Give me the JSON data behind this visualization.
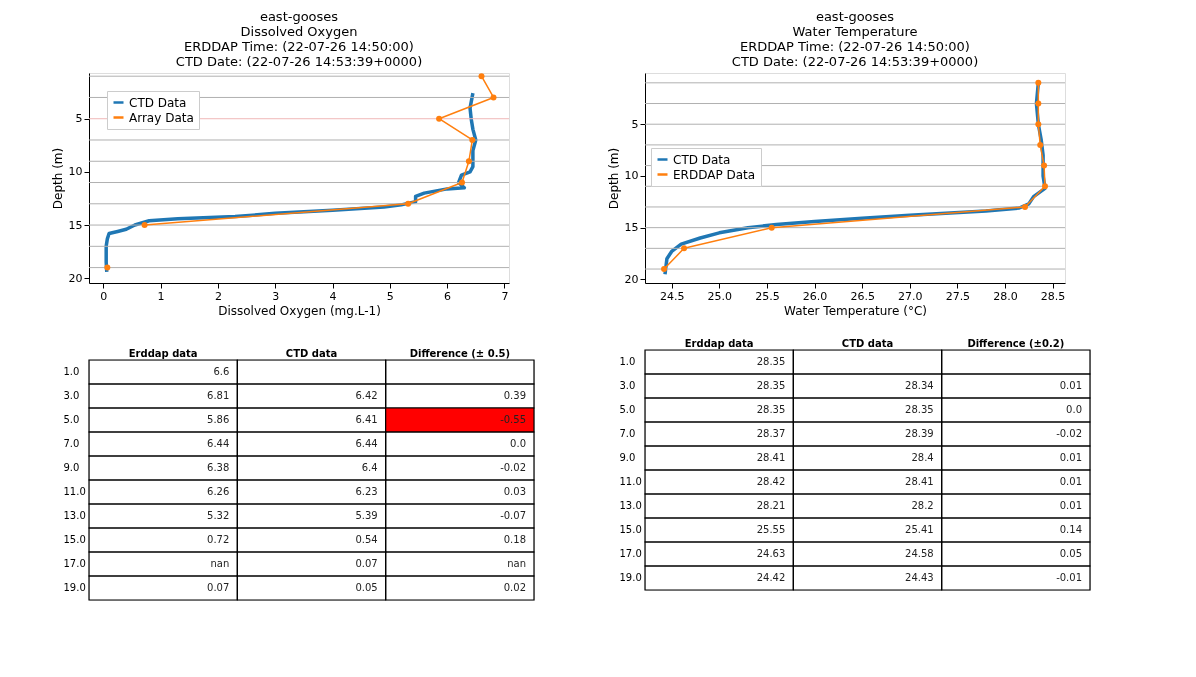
{
  "chart_data": [
    {
      "type": "line",
      "title": "east-gooses\nDissolved Oxygen\nERDDAP Time: (22-07-26 14:50:00)\nCTD Date: (22-07-26 14:53:39+0000)",
      "xlabel": "Dissolved Oxygen (mg.L-1)",
      "ylabel": "Depth (m)",
      "xlim": [
        -0.25,
        7.08
      ],
      "ylim": [
        20.45,
        0.7
      ],
      "xticks": [
        0,
        1,
        2,
        3,
        4,
        5,
        6,
        7
      ],
      "yticks": [
        5,
        10,
        15,
        20
      ],
      "grid": false,
      "legend": "top left",
      "line_style": "solid",
      "series": [
        {
          "name": "CTD Data",
          "color": "#1f77b4",
          "marker": "none",
          "x": [
            6.45,
            6.4,
            6.42,
            6.45,
            6.5,
            6.45,
            6.45,
            6.4,
            6.25,
            6.2,
            6.3,
            6.0,
            5.6,
            5.45,
            5.45,
            5.2,
            4.9,
            4.0,
            3.0,
            2.3,
            1.3,
            0.8,
            0.55,
            0.4,
            0.25,
            0.1,
            0.07,
            0.05,
            0.05,
            0.06
          ],
          "values": [
            2.6,
            4.0,
            5.0,
            6.0,
            7.0,
            8.0,
            9.5,
            10.0,
            10.3,
            11.0,
            11.5,
            11.6,
            12.0,
            12.3,
            12.8,
            13.1,
            13.3,
            13.6,
            13.9,
            14.2,
            14.4,
            14.6,
            15.0,
            15.4,
            15.6,
            15.8,
            16.3,
            17.0,
            18.5,
            19.4
          ]
        },
        {
          "name": "Array Data",
          "color": "#ff7f0e",
          "marker": "circle",
          "x": [
            6.6,
            6.81,
            5.86,
            6.44,
            6.38,
            6.26,
            5.32,
            0.72,
            null,
            0.07
          ],
          "values": [
            1,
            3,
            5,
            7,
            9,
            11,
            13,
            15,
            null,
            19
          ]
        }
      ],
      "ref_lines": [
        {
          "axis": "y",
          "value": 1,
          "color": "#b0b0b0"
        },
        {
          "axis": "y",
          "value": 3,
          "color": "#b0b0b0"
        },
        {
          "axis": "y",
          "value": 5,
          "color": "#f0b8b8"
        },
        {
          "axis": "y",
          "value": 7,
          "color": "#b0b0b0"
        },
        {
          "axis": "y",
          "value": 9,
          "color": "#b0b0b0"
        },
        {
          "axis": "y",
          "value": 11,
          "color": "#b0b0b0"
        },
        {
          "axis": "y",
          "value": 13,
          "color": "#b0b0b0"
        },
        {
          "axis": "y",
          "value": 15,
          "color": "#b0b0b0"
        },
        {
          "axis": "y",
          "value": 17,
          "color": "#b0b0b0"
        },
        {
          "axis": "y",
          "value": 19,
          "color": "#b0b0b0"
        }
      ]
    },
    {
      "type": "line",
      "title": "east-gooses\nWater Temperature\nERDDAP Time: (22-07-26 14:50:00)\nCTD Date: (22-07-26 14:53:39+0000)",
      "xlabel": "Water Temperature (°C)",
      "ylabel": "Depth (m)",
      "xlim": [
        24.22,
        28.63
      ],
      "ylim": [
        20.35,
        0.05
      ],
      "xticks": [
        24.5,
        {
          "value": 25,
          "label": "25.0"
        },
        25.5,
        {
          "value": 26,
          "label": "26.0"
        },
        26.5,
        {
          "value": 27,
          "label": "27.0"
        },
        27.5,
        {
          "value": 28,
          "label": "28.0"
        },
        28.5
      ],
      "yticks": [
        5,
        10,
        15,
        20
      ],
      "grid": false,
      "legend": "left",
      "line_style": "solid",
      "series": [
        {
          "name": "CTD Data",
          "color": "#1f77b4",
          "marker": "none",
          "x": [
            28.35,
            28.33,
            28.35,
            28.38,
            28.4,
            28.4,
            28.42,
            28.3,
            28.25,
            28.15,
            27.8,
            27.0,
            26.5,
            26.0,
            25.6,
            25.3,
            25.0,
            24.8,
            24.6,
            24.5,
            24.45,
            24.43
          ],
          "values": [
            1,
            3,
            5,
            6.5,
            8,
            10,
            11.2,
            12,
            12.7,
            13.1,
            13.4,
            13.8,
            14.1,
            14.4,
            14.7,
            15.0,
            15.5,
            16.0,
            16.6,
            17.3,
            18,
            19.5
          ]
        },
        {
          "name": "ERDDAP Data",
          "color": "#ff7f0e",
          "marker": "circle",
          "x": [
            28.35,
            28.35,
            28.35,
            28.37,
            28.41,
            28.42,
            28.21,
            25.55,
            24.63,
            24.42
          ],
          "values": [
            1,
            3,
            5,
            7,
            9,
            11,
            13,
            15,
            17,
            19
          ]
        }
      ],
      "ref_lines": [
        {
          "axis": "y",
          "value": 1,
          "color": "#b0b0b0"
        },
        {
          "axis": "y",
          "value": 3,
          "color": "#b0b0b0"
        },
        {
          "axis": "y",
          "value": 5,
          "color": "#b0b0b0"
        },
        {
          "axis": "y",
          "value": 7,
          "color": "#b0b0b0"
        },
        {
          "axis": "y",
          "value": 9,
          "color": "#b0b0b0"
        },
        {
          "axis": "y",
          "value": 11,
          "color": "#b0b0b0"
        },
        {
          "axis": "y",
          "value": 13,
          "color": "#b0b0b0"
        },
        {
          "axis": "y",
          "value": 15,
          "color": "#b0b0b0"
        },
        {
          "axis": "y",
          "value": 17,
          "color": "#b0b0b0"
        },
        {
          "axis": "y",
          "value": 19,
          "color": "#b0b0b0"
        }
      ]
    },
    {
      "type": "heatmap",
      "categories": [
        "Erddap data",
        "CTD data",
        "Difference (± 0.5)"
      ],
      "y_categories": [
        "1.0",
        "3.0",
        "5.0",
        "7.0",
        "9.0",
        "11.0",
        "13.0",
        "15.0",
        "17.0",
        "19.0"
      ],
      "cells": [
        [
          6.6,
          null,
          null
        ],
        [
          6.81,
          6.42,
          0.39
        ],
        [
          5.86,
          6.41,
          -0.55
        ],
        [
          6.44,
          6.44,
          0.0
        ],
        [
          6.38,
          6.4,
          -0.02
        ],
        [
          6.26,
          6.23,
          0.03
        ],
        [
          5.32,
          5.39,
          -0.07
        ],
        [
          0.72,
          0.54,
          0.18
        ],
        [
          null,
          0.07,
          null
        ],
        [
          0.07,
          0.05,
          0.02
        ]
      ],
      "cell_labels": [
        [
          "6.6",
          null,
          null
        ],
        [
          "6.81",
          "6.42",
          "0.39"
        ],
        [
          "5.86",
          "6.41",
          "-0.55"
        ],
        [
          "6.44",
          "6.44",
          "0.0"
        ],
        [
          "6.38",
          "6.4",
          "-0.02"
        ],
        [
          "6.26",
          "6.23",
          "0.03"
        ],
        [
          "5.32",
          "5.39",
          "-0.07"
        ],
        [
          "0.72",
          "0.54",
          "0.18"
        ],
        [
          "nan",
          "0.07",
          "nan"
        ],
        [
          "0.07",
          "0.05",
          "0.02"
        ]
      ],
      "colors": [
        [
          null,
          null,
          null
        ],
        [
          null,
          null,
          null
        ],
        [
          null,
          null,
          "#ff0000"
        ],
        [
          null,
          null,
          null
        ],
        [
          null,
          null,
          null
        ],
        [
          null,
          null,
          null
        ],
        [
          null,
          null,
          null
        ],
        [
          null,
          null,
          null
        ],
        [
          null,
          null,
          null
        ],
        [
          null,
          null,
          null
        ]
      ]
    },
    {
      "type": "heatmap",
      "categories": [
        "Erddap data",
        "CTD data",
        "Difference (±0.2)"
      ],
      "y_categories": [
        "1.0",
        "3.0",
        "5.0",
        "7.0",
        "9.0",
        "11.0",
        "13.0",
        "15.0",
        "17.0",
        "19.0"
      ],
      "cells": [
        [
          28.35,
          null,
          null
        ],
        [
          28.35,
          28.34,
          0.01
        ],
        [
          28.35,
          28.35,
          0.0
        ],
        [
          28.37,
          28.39,
          -0.02
        ],
        [
          28.41,
          28.4,
          0.01
        ],
        [
          28.42,
          28.41,
          0.01
        ],
        [
          28.21,
          28.2,
          0.01
        ],
        [
          25.55,
          25.41,
          0.14
        ],
        [
          24.63,
          24.58,
          0.05
        ],
        [
          24.42,
          24.43,
          -0.01
        ]
      ],
      "cell_labels": [
        [
          "28.35",
          null,
          null
        ],
        [
          "28.35",
          "28.34",
          "0.01"
        ],
        [
          "28.35",
          "28.35",
          "0.0"
        ],
        [
          "28.37",
          "28.39",
          "-0.02"
        ],
        [
          "28.41",
          "28.4",
          "0.01"
        ],
        [
          "28.42",
          "28.41",
          "0.01"
        ],
        [
          "28.21",
          "28.2",
          "0.01"
        ],
        [
          "25.55",
          "25.41",
          "0.14"
        ],
        [
          "24.63",
          "24.58",
          "0.05"
        ],
        [
          "24.42",
          "24.43",
          "-0.01"
        ]
      ]
    }
  ]
}
